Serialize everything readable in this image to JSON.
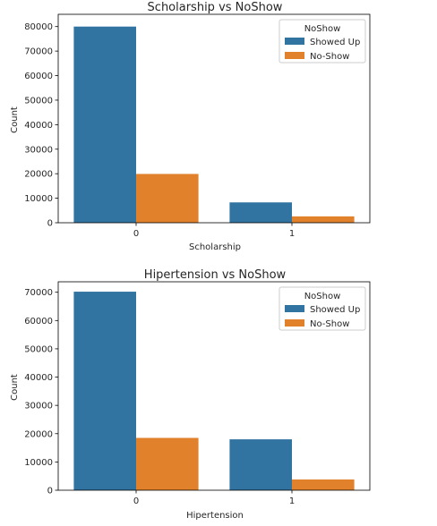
{
  "chart_data": [
    {
      "type": "bar",
      "title": "Scholarship vs NoShow",
      "xlabel": "Scholarship",
      "ylabel": "Count",
      "categories": [
        "0",
        "1"
      ],
      "series": [
        {
          "name": "Showed Up",
          "values": [
            80000,
            8300
          ]
        },
        {
          "name": "No-Show",
          "values": [
            19900,
            2600
          ]
        }
      ],
      "ylim": [
        0,
        85000
      ],
      "yticks": [
        0,
        10000,
        20000,
        30000,
        40000,
        50000,
        60000,
        70000,
        80000
      ],
      "legend_title": "NoShow",
      "legend_position": "top-right",
      "grid": false
    },
    {
      "type": "bar",
      "title": "Hipertension vs NoShow",
      "xlabel": "Hipertension",
      "ylabel": "Count",
      "categories": [
        "0",
        "1"
      ],
      "series": [
        {
          "name": "Showed Up",
          "values": [
            70200,
            18000
          ]
        },
        {
          "name": "No-Show",
          "values": [
            18500,
            3800
          ]
        }
      ],
      "ylim": [
        0,
        73700
      ],
      "yticks": [
        0,
        10000,
        20000,
        30000,
        40000,
        50000,
        60000,
        70000
      ],
      "legend_title": "NoShow",
      "legend_position": "top-right",
      "grid": false
    }
  ],
  "colors": {
    "Showed Up": "#3274a1",
    "No-Show": "#e1812c"
  }
}
